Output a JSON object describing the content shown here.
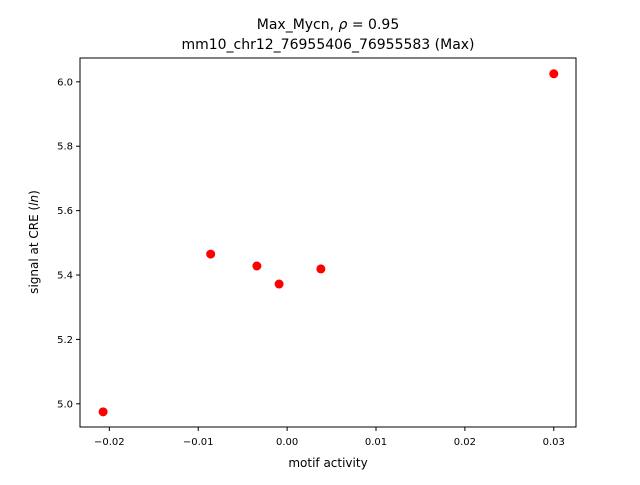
{
  "chart_data": {
    "type": "scatter",
    "title_line1_pre": "Max_Mycn, ",
    "title_line1_rho": "ρ",
    "title_line1_post": " = 0.95",
    "title_line2": "mm10_chr12_76955406_76955583 (Max)",
    "xlabel": "motif activity",
    "ylabel_pre": "signal at CRE (",
    "ylabel_italic": "ln",
    "ylabel_post": ")",
    "xlim": [
      -0.0233,
      0.0325
    ],
    "ylim": [
      4.928,
      6.074
    ],
    "xticks": [
      -0.02,
      -0.01,
      0.0,
      0.01,
      0.02,
      0.03
    ],
    "xtick_labels": [
      "−0.02",
      "−0.01",
      "0.00",
      "0.01",
      "0.02",
      "0.03"
    ],
    "yticks": [
      5.0,
      5.2,
      5.4,
      5.6,
      5.8,
      6.0
    ],
    "ytick_labels": [
      "5.0",
      "5.2",
      "5.4",
      "5.6",
      "5.8",
      "6.0"
    ],
    "marker_color": "#ff0000",
    "points": [
      {
        "x": -0.0207,
        "y": 4.975
      },
      {
        "x": -0.0086,
        "y": 5.465
      },
      {
        "x": -0.0034,
        "y": 5.428
      },
      {
        "x": -0.0009,
        "y": 5.372
      },
      {
        "x": 0.0038,
        "y": 5.419
      },
      {
        "x": 0.03,
        "y": 6.025
      }
    ]
  }
}
